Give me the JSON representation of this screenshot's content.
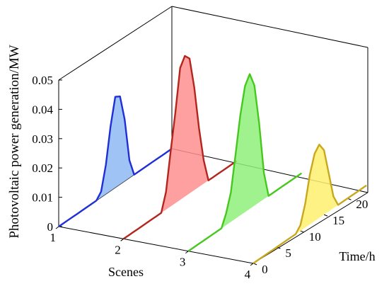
{
  "chart_data": {
    "type": "area",
    "title": "",
    "ylabel": "Photovoltaic power generation/MW",
    "xlabel": "Scenes",
    "zlabel": "Time/h",
    "ylim": [
      0,
      0.05
    ],
    "y_ticks": [
      "0",
      "0.01",
      "0.02",
      "0.03",
      "0.04",
      "0.05"
    ],
    "scene_ticks": [
      "1",
      "2",
      "3",
      "4"
    ],
    "time_ticks": [
      "0",
      "5",
      "10",
      "15",
      "20"
    ],
    "time_range": [
      0,
      24
    ],
    "grid": false,
    "x": [
      0,
      1,
      2,
      3,
      4,
      5,
      6,
      7,
      8,
      9,
      10,
      11,
      12,
      13,
      14,
      15,
      16,
      17,
      18,
      19,
      20,
      21,
      22,
      23,
      24
    ],
    "series": [
      {
        "scene": 1,
        "line_color": "#1f2fd6",
        "fill_color": "#8fb8f5",
        "values": [
          0,
          0,
          0,
          0,
          0,
          0,
          0,
          0,
          0,
          0.002,
          0.01,
          0.022,
          0.031,
          0.03,
          0.021,
          0.006,
          0,
          0,
          0,
          0,
          0,
          0,
          0,
          0,
          0
        ]
      },
      {
        "scene": 2,
        "line_color": "#b3261e",
        "fill_color": "#ff8f8f",
        "values": [
          0,
          0,
          0,
          0,
          0,
          0,
          0,
          0,
          0,
          0.006,
          0.019,
          0.031,
          0.045,
          0.048,
          0.046,
          0.035,
          0.02,
          0.008,
          0,
          0,
          0,
          0,
          0,
          0,
          0
        ]
      },
      {
        "scene": 3,
        "line_color": "#46c81e",
        "fill_color": "#8ef07a",
        "values": [
          0,
          0,
          0,
          0,
          0,
          0,
          0,
          0,
          0.004,
          0.01,
          0.022,
          0.034,
          0.043,
          0.046,
          0.041,
          0.027,
          0.009,
          0,
          0,
          0,
          0,
          0,
          0,
          0,
          0
        ]
      },
      {
        "scene": 4,
        "line_color": "#c8a81e",
        "fill_color": "#fff070",
        "values": [
          0,
          0,
          0,
          0,
          0,
          0,
          0,
          0,
          0,
          0,
          0.002,
          0.008,
          0.017,
          0.023,
          0.025,
          0.022,
          0.013,
          0.004,
          0,
          0,
          0,
          0,
          0,
          0,
          0
        ]
      }
    ]
  }
}
